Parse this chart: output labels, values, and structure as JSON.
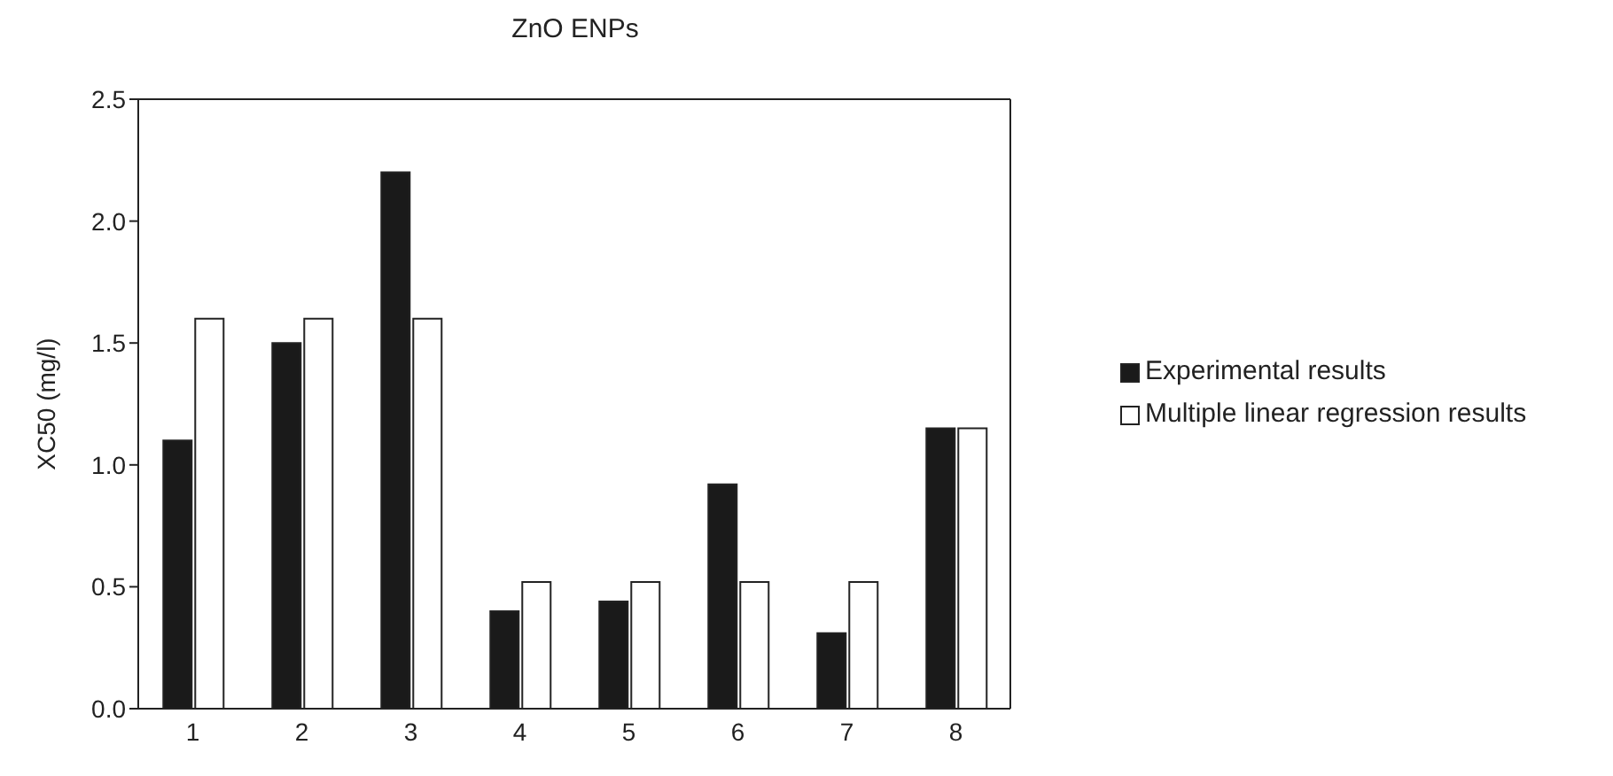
{
  "chart_data": {
    "type": "bar",
    "title": "ZnO ENPs",
    "ylabel": "XC50 (mg/l)",
    "categories": [
      "1",
      "2",
      "3",
      "4",
      "5",
      "6",
      "7",
      "8"
    ],
    "series": [
      {
        "name": "Experimental results",
        "color": "#1a1a1a",
        "values": [
          1.1,
          1.5,
          2.2,
          0.4,
          0.44,
          0.92,
          0.31,
          1.15
        ]
      },
      {
        "name": "Multiple linear regression results",
        "color": "#ffffff",
        "values": [
          1.6,
          1.6,
          1.6,
          0.52,
          0.52,
          0.52,
          0.52,
          1.15
        ]
      }
    ],
    "ylim": [
      0,
      2.5
    ],
    "yticks": [
      {
        "value": 0,
        "label": "0.0"
      },
      0.5,
      {
        "value": 1,
        "label": "1.0"
      },
      1.5,
      {
        "value": 2,
        "label": "2.0"
      },
      2.5
    ],
    "grid": false,
    "legend": "right"
  }
}
